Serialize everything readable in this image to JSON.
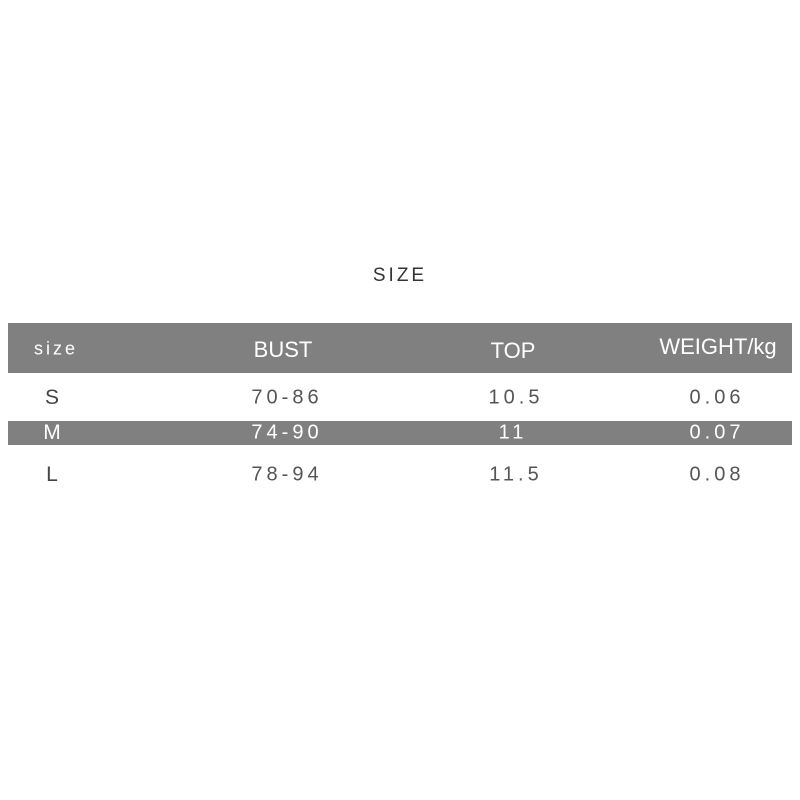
{
  "title": "SIZE",
  "table": {
    "headers": [
      "size",
      "BUST",
      "TOP",
      "WEIGHT/kg"
    ],
    "rows": [
      [
        "S",
        "70-86",
        "10.5",
        "0.06"
      ],
      [
        "M",
        "74-90",
        "11",
        "0.07"
      ],
      [
        "L",
        "78-94",
        "11.5",
        "0.08"
      ]
    ]
  },
  "colors": {
    "header_bg": "#808080",
    "highlight_row_bg": "#808080",
    "text": "#555555"
  }
}
